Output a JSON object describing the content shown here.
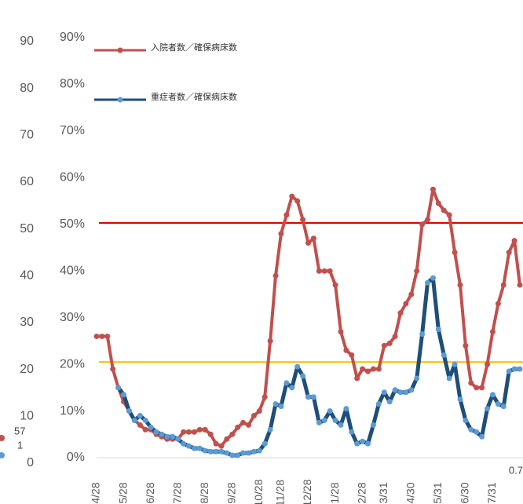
{
  "chart_data": {
    "type": "line",
    "ylim": [
      0,
      90
    ],
    "yticks": [
      0,
      10,
      20,
      30,
      40,
      50,
      60,
      70,
      80,
      90
    ],
    "y2lim": [
      0,
      90
    ],
    "y2ticks": [
      {
        "value": 0,
        "label": "0%"
      },
      {
        "value": 10,
        "label": "10%"
      },
      {
        "value": 20,
        "label": "20%"
      },
      {
        "value": 30,
        "label": "30%"
      },
      {
        "value": 40,
        "label": "40%"
      },
      {
        "value": 50,
        "label": "50%"
      },
      {
        "value": 60,
        "label": "60%"
      },
      {
        "value": 70,
        "label": "70%"
      },
      {
        "value": 80,
        "label": "80%"
      },
      {
        "value": 90,
        "label": "90%"
      }
    ],
    "categories": [
      "4/28",
      null,
      null,
      null,
      null,
      "5/28",
      null,
      null,
      null,
      null,
      "6/28",
      null,
      null,
      null,
      null,
      "7/28",
      null,
      null,
      null,
      null,
      "8/28",
      null,
      null,
      null,
      null,
      "9/28",
      null,
      null,
      null,
      null,
      "10/28",
      null,
      null,
      null,
      "11/28",
      null,
      null,
      null,
      null,
      "12/28",
      null,
      null,
      null,
      null,
      "1/28",
      null,
      null,
      null,
      null,
      "2/28",
      null,
      null,
      null,
      "3/31",
      null,
      null,
      null,
      null,
      "4/30",
      null,
      null,
      null,
      null,
      "5/31",
      null,
      null,
      null,
      null,
      "6/30",
      null,
      null,
      null,
      null,
      "7/31",
      null,
      null,
      null,
      null,
      null
    ],
    "series": [
      {
        "name": "入院者数／確保病床数",
        "color": "#c0504d",
        "axis": "y2",
        "values": [
          26,
          26,
          26,
          19,
          15,
          12,
          10,
          8,
          7,
          6,
          6,
          5,
          4.5,
          4,
          4,
          4,
          5.5,
          5.5,
          5.5,
          6,
          6,
          5,
          3,
          2.5,
          4,
          5,
          6.5,
          7.5,
          7,
          9,
          10,
          13,
          25,
          39,
          48,
          52,
          56,
          55,
          51,
          46,
          47,
          40,
          40,
          40,
          37,
          27,
          23,
          22,
          17,
          19,
          18.5,
          19,
          19,
          24,
          24.5,
          26,
          31,
          33,
          35,
          40,
          50,
          51,
          57.5,
          54.5,
          53,
          52,
          44,
          37,
          24,
          16,
          15,
          15,
          20,
          27,
          33,
          37,
          44,
          46.5,
          37
        ]
      },
      {
        "name": "重症者数／確保病床数",
        "color": "#1f4e79",
        "axis": "y2",
        "values": [
          null,
          null,
          null,
          null,
          15,
          13.5,
          10,
          8,
          9,
          8,
          6.5,
          5.5,
          5,
          4.5,
          4.5,
          4,
          3,
          2.5,
          2,
          2,
          1.5,
          1.3,
          1.3,
          1.3,
          1,
          0.5,
          0.5,
          1,
          1,
          1.3,
          1.5,
          3,
          6,
          11.5,
          11,
          16,
          15,
          19.5,
          17.5,
          13,
          13,
          7.5,
          8,
          10,
          8,
          7,
          10.5,
          5.5,
          3,
          3.5,
          3,
          7,
          11.5,
          14,
          12,
          14.5,
          14,
          14,
          14.5,
          17,
          26.5,
          37.5,
          38.5,
          27.5,
          22,
          17,
          20,
          12.5,
          8,
          6,
          5.5,
          4.5,
          10.5,
          13.5,
          11.5,
          11,
          18.5,
          19,
          19
        ]
      }
    ],
    "reference_lines": [
      {
        "value": 50.3,
        "color": "#e00000"
      },
      {
        "value": 20.5,
        "color": "#ffc000"
      }
    ],
    "annotations": [
      {
        "text": "57",
        "color": "#c0504d"
      },
      {
        "text": "1",
        "color": "#5b9bd5"
      },
      {
        "text": "0.7"
      }
    ]
  }
}
